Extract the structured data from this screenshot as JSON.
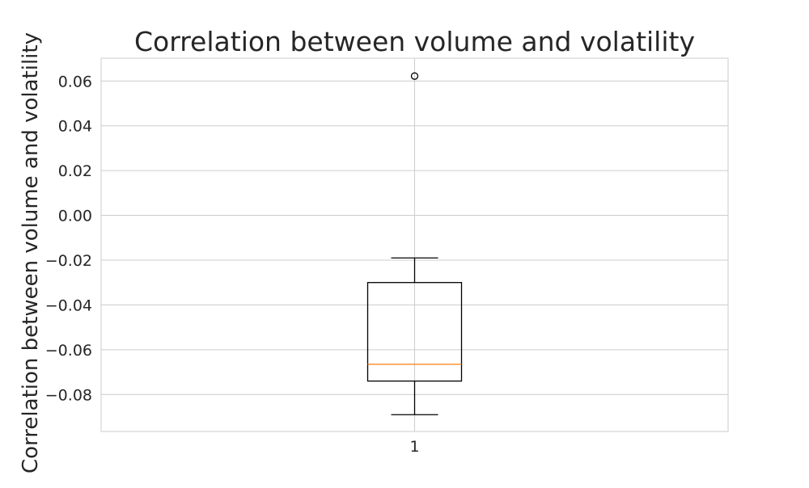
{
  "chart_data": {
    "type": "box",
    "title": "Correlation between volume and volatility",
    "xlabel": "",
    "ylabel": "Correlation between volume and volatility",
    "categories": [
      "1"
    ],
    "boxes": [
      {
        "name": "1",
        "whisker_low": -0.089,
        "q1": -0.074,
        "median": -0.0665,
        "q3": -0.03,
        "whisker_high": -0.019,
        "outliers": [
          0.0622
        ]
      }
    ],
    "yticks": [
      "0.06",
      "0.04",
      "0.02",
      "0.00",
      "−0.02",
      "−0.04",
      "−0.06",
      "−0.08"
    ],
    "ytick_values": [
      0.06,
      0.04,
      0.02,
      0.0,
      -0.02,
      -0.04,
      -0.06,
      -0.08
    ],
    "ylim": [
      -0.0965,
      0.0702
    ],
    "grid": true,
    "colors": {
      "box": "#000000",
      "median": "#ff7f0e",
      "grid": "#cccccc",
      "spine": "#cccccc"
    }
  }
}
